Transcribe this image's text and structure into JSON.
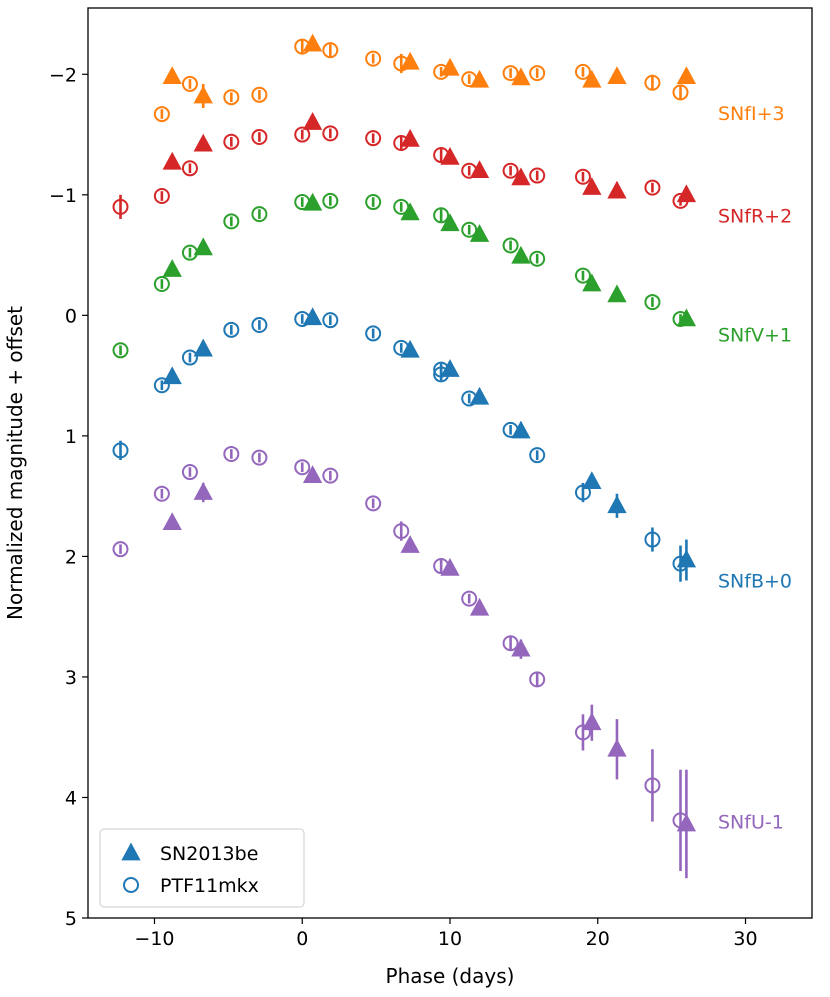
{
  "chart_data": {
    "type": "scatter",
    "xlabel": "Phase (days)",
    "ylabel": "Normalized magnitude + offset",
    "xlim": [
      -14.5,
      34.5
    ],
    "ylim": [
      5,
      -2.55
    ],
    "y_inverted": true,
    "x_ticks": [
      -10,
      0,
      10,
      20,
      30
    ],
    "y_ticks": [
      -2,
      -1,
      0,
      1,
      2,
      3,
      4,
      5
    ],
    "x_tick_labels": [
      "−10",
      "0",
      "10",
      "20",
      "30"
    ],
    "y_tick_labels": [
      "−2",
      "−1",
      "0",
      "1",
      "2",
      "3",
      "4",
      "5"
    ],
    "legend": {
      "placement": "bottom-left",
      "entries": [
        {
          "label": "SN2013be",
          "marker": "triangle-filled"
        },
        {
          "label": "PTF11mkx",
          "marker": "circle-open"
        }
      ]
    },
    "bands": [
      {
        "label": "SNfI+3",
        "color": "#ff7f0e",
        "SN2013be": [
          [
            -8.8,
            -1.98,
            0.03
          ],
          [
            -6.7,
            -1.82,
            0.1
          ],
          [
            0.7,
            -2.25,
            0.04
          ],
          [
            7.3,
            -2.1,
            0.03
          ],
          [
            10.0,
            -2.05,
            0.04
          ],
          [
            12.0,
            -1.95,
            0.03
          ],
          [
            14.8,
            -1.97,
            0.03
          ],
          [
            19.6,
            -1.95,
            0.03
          ],
          [
            21.3,
            -1.98,
            0.03
          ],
          [
            26.0,
            -1.98,
            0.03
          ]
        ],
        "PTF11mkx": [
          [
            -9.5,
            -1.67,
            0.04
          ],
          [
            -7.6,
            -1.92,
            0.04
          ],
          [
            -4.8,
            -1.81,
            0.04
          ],
          [
            -2.9,
            -1.83,
            0.04
          ],
          [
            0.0,
            -2.23,
            0.05
          ],
          [
            1.9,
            -2.2,
            0.05
          ],
          [
            4.8,
            -2.13,
            0.04
          ],
          [
            6.7,
            -2.09,
            0.08
          ],
          [
            9.4,
            -2.02,
            0.04
          ],
          [
            11.3,
            -1.96,
            0.04
          ],
          [
            14.1,
            -2.01,
            0.04
          ],
          [
            15.9,
            -2.01,
            0.04
          ],
          [
            19.0,
            -2.02,
            0.04
          ],
          [
            23.7,
            -1.93,
            0.06
          ],
          [
            25.6,
            -1.85,
            0.06
          ]
        ]
      },
      {
        "label": "SNfR+2",
        "color": "#d62728",
        "SN2013be": [
          [
            -8.8,
            -1.27,
            0.03
          ],
          [
            -6.7,
            -1.42,
            0.03
          ],
          [
            0.7,
            -1.6,
            0.03
          ],
          [
            7.3,
            -1.46,
            0.03
          ],
          [
            10.0,
            -1.31,
            0.03
          ],
          [
            12.0,
            -1.2,
            0.03
          ],
          [
            14.8,
            -1.14,
            0.03
          ],
          [
            19.6,
            -1.06,
            0.03
          ],
          [
            21.3,
            -1.03,
            0.03
          ],
          [
            26.0,
            -1.0,
            0.03
          ]
        ],
        "PTF11mkx": [
          [
            -12.3,
            -0.9,
            0.1
          ],
          [
            -9.5,
            -0.99,
            0.04
          ],
          [
            -7.6,
            -1.22,
            0.04
          ],
          [
            -4.8,
            -1.44,
            0.04
          ],
          [
            -2.9,
            -1.48,
            0.04
          ],
          [
            0.0,
            -1.5,
            0.04
          ],
          [
            1.9,
            -1.51,
            0.04
          ],
          [
            4.8,
            -1.47,
            0.04
          ],
          [
            6.7,
            -1.43,
            0.05
          ],
          [
            9.4,
            -1.33,
            0.05
          ],
          [
            11.3,
            -1.2,
            0.04
          ],
          [
            14.1,
            -1.2,
            0.04
          ],
          [
            15.9,
            -1.16,
            0.04
          ],
          [
            19.0,
            -1.15,
            0.04
          ],
          [
            23.7,
            -1.06,
            0.04
          ],
          [
            25.6,
            -0.95,
            0.04
          ]
        ]
      },
      {
        "label": "SNfV+1",
        "color": "#2ca02c",
        "SN2013be": [
          [
            -8.8,
            -0.38,
            0.03
          ],
          [
            -6.7,
            -0.56,
            0.03
          ],
          [
            0.7,
            -0.93,
            0.03
          ],
          [
            7.3,
            -0.85,
            0.03
          ],
          [
            10.0,
            -0.76,
            0.03
          ],
          [
            12.0,
            -0.67,
            0.03
          ],
          [
            14.8,
            -0.49,
            0.03
          ],
          [
            19.6,
            -0.26,
            0.03
          ],
          [
            21.3,
            -0.17,
            0.03
          ],
          [
            26.0,
            0.03,
            0.03
          ]
        ],
        "PTF11mkx": [
          [
            -12.3,
            0.29,
            0.04
          ],
          [
            -9.5,
            -0.26,
            0.04
          ],
          [
            -7.6,
            -0.52,
            0.04
          ],
          [
            -4.8,
            -0.78,
            0.04
          ],
          [
            -2.9,
            -0.84,
            0.04
          ],
          [
            0.0,
            -0.94,
            0.04
          ],
          [
            1.9,
            -0.95,
            0.04
          ],
          [
            4.8,
            -0.94,
            0.04
          ],
          [
            6.7,
            -0.9,
            0.04
          ],
          [
            9.4,
            -0.83,
            0.05
          ],
          [
            11.3,
            -0.71,
            0.04
          ],
          [
            14.1,
            -0.58,
            0.04
          ],
          [
            15.9,
            -0.47,
            0.04
          ],
          [
            19.0,
            -0.33,
            0.04
          ],
          [
            23.7,
            -0.11,
            0.04
          ],
          [
            25.6,
            0.03,
            0.04
          ]
        ]
      },
      {
        "label": "SNfB+0",
        "color": "#1f77b4",
        "SN2013be": [
          [
            -8.8,
            0.51,
            0.03
          ],
          [
            -6.7,
            0.28,
            0.06
          ],
          [
            0.7,
            0.02,
            0.03
          ],
          [
            7.3,
            0.29,
            0.03
          ],
          [
            10.0,
            0.45,
            0.03
          ],
          [
            12.0,
            0.68,
            0.03
          ],
          [
            14.8,
            0.96,
            0.03
          ],
          [
            19.6,
            1.38,
            0.06
          ],
          [
            21.3,
            1.58,
            0.1
          ],
          [
            26.0,
            2.03,
            0.17
          ]
        ],
        "PTF11mkx": [
          [
            -12.3,
            1.12,
            0.08
          ],
          [
            -9.5,
            0.58,
            0.04
          ],
          [
            -7.6,
            0.35,
            0.04
          ],
          [
            -4.8,
            0.12,
            0.04
          ],
          [
            -2.9,
            0.08,
            0.04
          ],
          [
            0.0,
            0.03,
            0.04
          ],
          [
            1.9,
            0.04,
            0.04
          ],
          [
            4.8,
            0.15,
            0.04
          ],
          [
            6.7,
            0.27,
            0.04
          ],
          [
            9.4,
            0.45,
            0.05
          ],
          [
            9.4,
            0.49,
            0.05
          ],
          [
            11.3,
            0.69,
            0.04
          ],
          [
            14.1,
            0.95,
            0.04
          ],
          [
            15.9,
            1.16,
            0.04
          ],
          [
            19.0,
            1.47,
            0.08
          ],
          [
            23.7,
            1.86,
            0.1
          ],
          [
            25.6,
            2.06,
            0.15
          ]
        ]
      },
      {
        "label": "SNfU-1",
        "color": "#9467bd",
        "SN2013be": [
          [
            -8.8,
            1.72,
            0.03
          ],
          [
            -6.7,
            1.47,
            0.08
          ],
          [
            0.7,
            1.33,
            0.03
          ],
          [
            7.3,
            1.91,
            0.03
          ],
          [
            10.0,
            2.1,
            0.04
          ],
          [
            12.0,
            2.43,
            0.04
          ],
          [
            14.8,
            2.77,
            0.08
          ],
          [
            19.6,
            3.38,
            0.15
          ],
          [
            21.3,
            3.6,
            0.25
          ],
          [
            26.0,
            4.22,
            0.45
          ]
        ],
        "PTF11mkx": [
          [
            -12.3,
            1.94,
            0.04
          ],
          [
            -9.5,
            1.48,
            0.04
          ],
          [
            -7.6,
            1.3,
            0.04
          ],
          [
            -4.8,
            1.15,
            0.04
          ],
          [
            -2.9,
            1.18,
            0.04
          ],
          [
            0.0,
            1.26,
            0.04
          ],
          [
            1.9,
            1.33,
            0.04
          ],
          [
            4.8,
            1.56,
            0.04
          ],
          [
            6.7,
            1.79,
            0.08
          ],
          [
            9.4,
            2.08,
            0.05
          ],
          [
            11.3,
            2.35,
            0.04
          ],
          [
            14.1,
            2.72,
            0.06
          ],
          [
            15.9,
            3.02,
            0.06
          ],
          [
            19.0,
            3.46,
            0.15
          ],
          [
            23.7,
            3.9,
            0.3
          ],
          [
            25.6,
            4.19,
            0.42
          ]
        ]
      }
    ]
  }
}
